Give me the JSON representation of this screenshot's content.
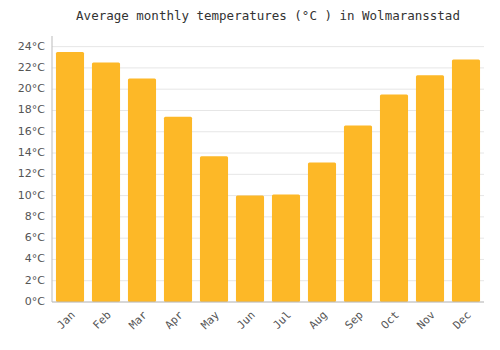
{
  "chart_data": {
    "type": "bar",
    "title": "Average monthly temperatures (°C ) in Wolmaransstad",
    "categories": [
      "Jan",
      "Feb",
      "Mar",
      "Apr",
      "May",
      "Jun",
      "Jul",
      "Aug",
      "Sep",
      "Oct",
      "Nov",
      "Dec"
    ],
    "values": [
      23.5,
      22.5,
      21.0,
      17.4,
      13.7,
      10.0,
      10.1,
      13.1,
      16.6,
      19.5,
      21.3,
      22.8
    ],
    "color": "#FDB827",
    "ylim": [
      0,
      25
    ],
    "yticks": [
      {
        "value": 0,
        "label": "0°C"
      },
      {
        "value": 2,
        "label": "2°C"
      },
      {
        "value": 4,
        "label": "4°C"
      },
      {
        "value": 6,
        "label": "6°C"
      },
      {
        "value": 8,
        "label": "8°C"
      },
      {
        "value": 10,
        "label": "10°C"
      },
      {
        "value": 12,
        "label": "12°C"
      },
      {
        "value": 14,
        "label": "14°C"
      },
      {
        "value": 16,
        "label": "16°C"
      },
      {
        "value": 18,
        "label": "18°C"
      },
      {
        "value": 20,
        "label": "20°C"
      },
      {
        "value": 22,
        "label": "22°C"
      },
      {
        "value": 24,
        "label": "24°C"
      }
    ],
    "grid": true
  }
}
